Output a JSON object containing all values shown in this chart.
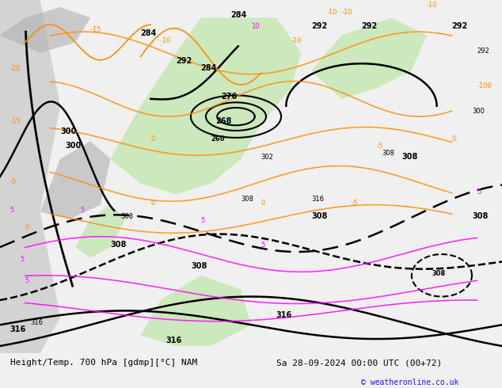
{
  "title_left": "Height/Temp. 700 hPa [gdmp][°C] NAM",
  "title_right": "Sa 28-09-2024 00:00 UTC (00+72)",
  "copyright": "© weatheronline.co.uk",
  "bg_color": "#e8e8e8",
  "map_bg_color": "#d8d8d8",
  "land_color": "#d8d8d8",
  "highlight_color": "#c8e8c8",
  "geop_color": "#000000",
  "temp_neg_color": "#ff8c00",
  "temp_pos_color": "#ff00ff",
  "geop_linewidth": 1.8,
  "temp_linewidth": 1.2,
  "figsize": [
    6.34,
    4.9
  ],
  "dpi": 100
}
